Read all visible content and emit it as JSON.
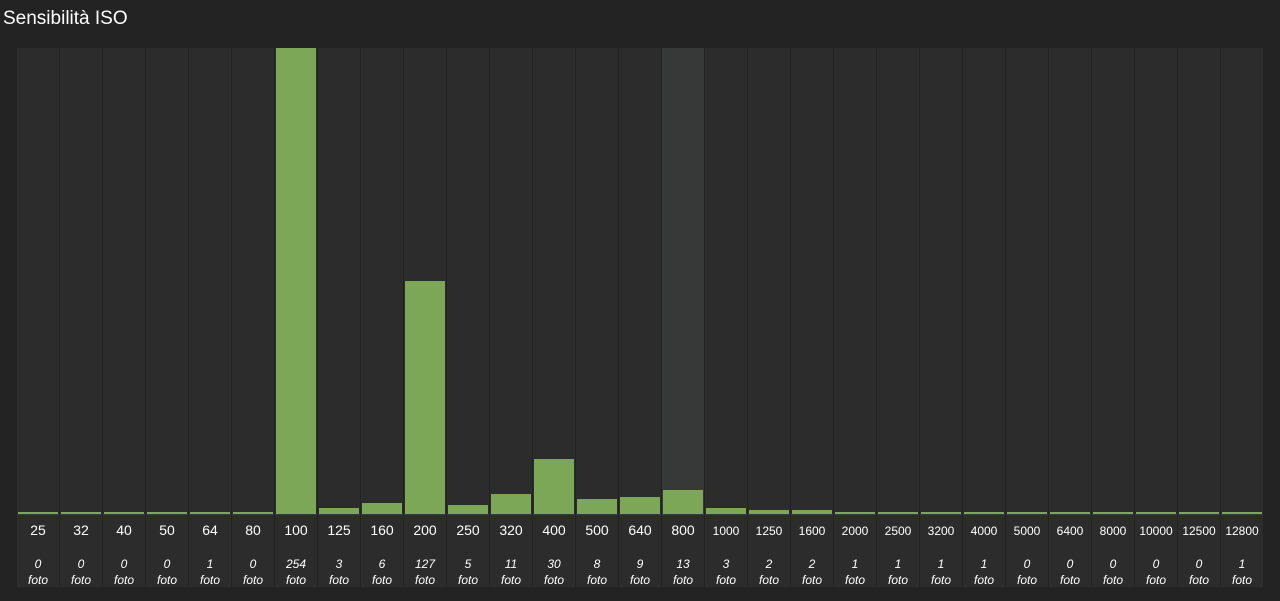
{
  "title": "Sensibilità ISO",
  "unit_label": "foto",
  "highlighted_category": "800",
  "colors": {
    "bar": "#7ba756",
    "column_bg": "#2c2c2c",
    "column_highlight": "#363938",
    "page_bg": "#232323"
  },
  "chart_data": {
    "type": "bar",
    "title": "Sensibilità ISO",
    "categories": [
      "25",
      "32",
      "40",
      "50",
      "64",
      "80",
      "100",
      "125",
      "160",
      "200",
      "250",
      "320",
      "400",
      "500",
      "640",
      "800",
      "1000",
      "1250",
      "1600",
      "2000",
      "2500",
      "3200",
      "4000",
      "5000",
      "6400",
      "8000",
      "10000",
      "12500",
      "12800"
    ],
    "values": [
      0,
      0,
      0,
      0,
      1,
      0,
      254,
      3,
      6,
      127,
      5,
      11,
      30,
      8,
      9,
      13,
      3,
      2,
      2,
      1,
      1,
      1,
      1,
      0,
      0,
      0,
      0,
      0,
      1
    ],
    "ylim": [
      0,
      254
    ],
    "grid": false,
    "legend": "none"
  }
}
